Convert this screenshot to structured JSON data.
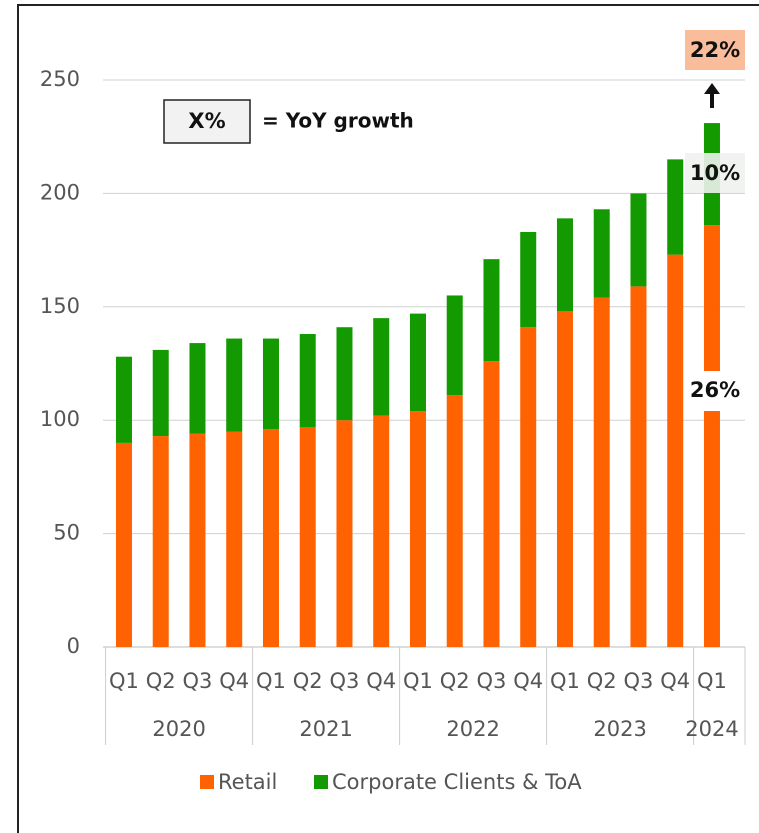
{
  "chart_data": {
    "type": "bar",
    "stacked": true,
    "groups": [
      {
        "name": "2020",
        "categories": [
          "Q1",
          "Q2",
          "Q3",
          "Q4"
        ]
      },
      {
        "name": "2021",
        "categories": [
          "Q1",
          "Q2",
          "Q3",
          "Q4"
        ]
      },
      {
        "name": "2022",
        "categories": [
          "Q1",
          "Q2",
          "Q3",
          "Q4"
        ]
      },
      {
        "name": "2023",
        "categories": [
          "Q1",
          "Q2",
          "Q3",
          "Q4"
        ]
      },
      {
        "name": "2024",
        "categories": [
          "Q1"
        ]
      }
    ],
    "series": [
      {
        "name": "Retail",
        "color": "#ff6200",
        "values": [
          90,
          93,
          94,
          95,
          96,
          97,
          100,
          102,
          104,
          111,
          126,
          141,
          148,
          154,
          159,
          173,
          186
        ]
      },
      {
        "name": "Corporate Clients & ToA",
        "color": "#129a00",
        "values": [
          38,
          38,
          40,
          41,
          40,
          41,
          41,
          43,
          43,
          44,
          45,
          42,
          41,
          39,
          41,
          42,
          45
        ]
      }
    ],
    "ylim": [
      0,
      250
    ],
    "yticks": [
      0,
      50,
      100,
      150,
      200,
      250
    ],
    "grid": true,
    "legend": "bottom",
    "annotations": {
      "key_box": "X%",
      "key_text": "= YoY growth",
      "total_growth": "22%",
      "corporate_growth": "10%",
      "retail_growth": "26%"
    }
  }
}
